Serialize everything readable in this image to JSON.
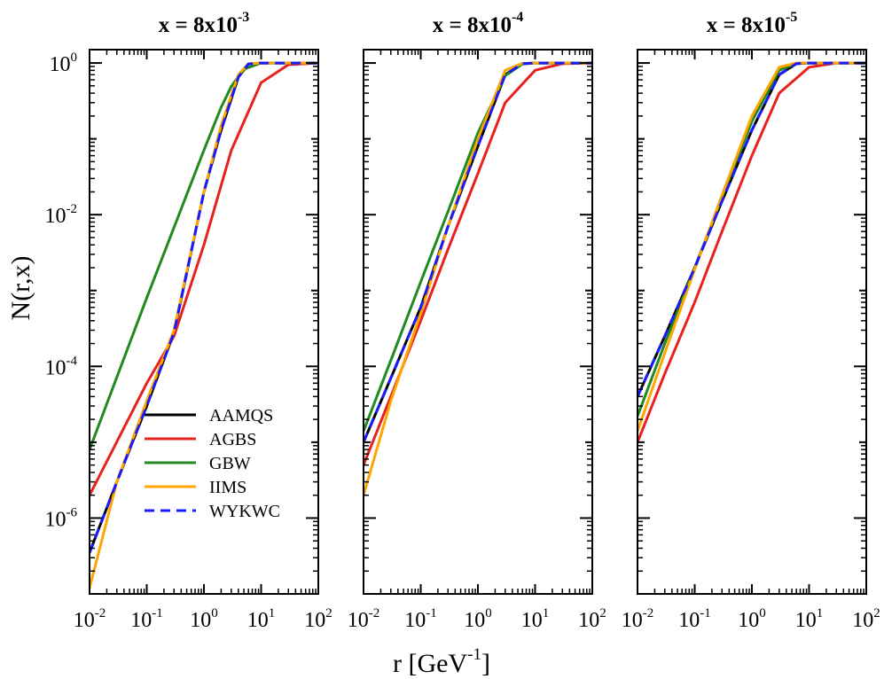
{
  "figure": {
    "ylabel": "N(r,x)",
    "xlabel_main": "r [GeV",
    "xlabel_sup": "-1",
    "xlabel_close": "]"
  },
  "chart_data": [
    {
      "type": "line",
      "title_base": "x = 8x10",
      "title_exp": "-3",
      "xscale": "log",
      "yscale": "log",
      "xlim": [
        0.01,
        100
      ],
      "ylim": [
        1e-07,
        1.5
      ],
      "xticks": [
        {
          "base": "10",
          "exp": "-2"
        },
        {
          "base": "10",
          "exp": "-1"
        },
        {
          "base": "10",
          "exp": "0"
        },
        {
          "base": "10",
          "exp": "1"
        },
        {
          "base": "10",
          "exp": "2"
        }
      ],
      "yticks": [
        {
          "value": 1,
          "base": "10",
          "exp": "0"
        },
        {
          "value": 0.01,
          "base": "10",
          "exp": "-2"
        },
        {
          "value": 0.0001,
          "base": "10",
          "exp": "-4"
        },
        {
          "value": 1e-06,
          "base": "10",
          "exp": "-6"
        }
      ],
      "series": [
        {
          "name": "AAMQS",
          "x": [
            0.01,
            0.03,
            0.1,
            0.3,
            1,
            2,
            4,
            6,
            10,
            100
          ],
          "y": [
            3.5e-07,
            3e-06,
            3e-05,
            0.00028,
            0.02,
            0.13,
            0.65,
            0.97,
            1,
            1
          ]
        },
        {
          "name": "AGBS",
          "x": [
            0.01,
            0.1,
            0.3,
            1,
            3,
            10,
            30,
            100
          ],
          "y": [
            2e-06,
            6e-05,
            0.00025,
            0.004,
            0.07,
            0.55,
            0.95,
            1
          ]
        },
        {
          "name": "GBW",
          "x": [
            0.01,
            0.1,
            0.3,
            1,
            2,
            3,
            5,
            10,
            100
          ],
          "y": [
            8e-06,
            0.0008,
            0.0068,
            0.071,
            0.26,
            0.49,
            0.83,
            1,
            1
          ]
        },
        {
          "name": "IIMS",
          "x": [
            0.01,
            0.03,
            0.1,
            0.3,
            1,
            2,
            4,
            6,
            10,
            100
          ],
          "y": [
            1.2e-07,
            3e-06,
            3.5e-05,
            0.0003,
            0.02,
            0.15,
            0.7,
            0.98,
            1,
            1
          ]
        },
        {
          "name": "WYKWC",
          "x": [
            0.01,
            0.03,
            0.1,
            0.3,
            1,
            2,
            4,
            6,
            10,
            100
          ],
          "y": [
            3.5e-07,
            3e-06,
            3e-05,
            0.00028,
            0.02,
            0.13,
            0.65,
            0.97,
            1,
            1
          ]
        }
      ]
    },
    {
      "type": "line",
      "title_base": "x = 8x10",
      "title_exp": "-4",
      "xscale": "log",
      "yscale": "log",
      "xlim": [
        0.01,
        100
      ],
      "ylim": [
        1e-07,
        1.5
      ],
      "xticks": [
        {
          "base": "10",
          "exp": "-2"
        },
        {
          "base": "10",
          "exp": "-1"
        },
        {
          "base": "10",
          "exp": "0"
        },
        {
          "base": "10",
          "exp": "1"
        },
        {
          "base": "10",
          "exp": "2"
        }
      ],
      "series": [
        {
          "name": "AAMQS",
          "x": [
            0.01,
            0.03,
            0.1,
            0.3,
            1,
            3,
            6,
            10,
            100
          ],
          "y": [
            1e-05,
            7e-05,
            0.0006,
            0.007,
            0.08,
            0.7,
            0.98,
            1,
            1
          ]
        },
        {
          "name": "AGBS",
          "x": [
            0.01,
            0.03,
            0.1,
            0.3,
            1,
            3,
            10,
            30,
            100
          ],
          "y": [
            5e-06,
            4e-05,
            0.0004,
            0.0035,
            0.035,
            0.3,
            0.8,
            0.98,
            1
          ]
        },
        {
          "name": "GBW",
          "x": [
            0.01,
            0.03,
            0.1,
            0.3,
            1,
            3,
            6,
            10,
            100
          ],
          "y": [
            1.4e-05,
            0.00012,
            0.0013,
            0.011,
            0.12,
            0.68,
            0.97,
            1,
            1
          ]
        },
        {
          "name": "IIMS",
          "x": [
            0.01,
            0.03,
            0.1,
            0.3,
            1,
            3,
            6,
            10,
            100
          ],
          "y": [
            2e-06,
            3.5e-05,
            0.0005,
            0.007,
            0.1,
            0.8,
            0.99,
            1,
            1
          ]
        },
        {
          "name": "WYKWC",
          "x": [
            0.01,
            0.03,
            0.1,
            0.3,
            1,
            3,
            6,
            10,
            100
          ],
          "y": [
            1e-05,
            7e-05,
            0.0006,
            0.007,
            0.08,
            0.7,
            0.98,
            1,
            1
          ]
        }
      ]
    },
    {
      "type": "line",
      "title_base": "x = 8x10",
      "title_exp": "-5",
      "xscale": "log",
      "yscale": "log",
      "xlim": [
        0.01,
        100
      ],
      "ylim": [
        1e-07,
        1.5
      ],
      "xticks": [
        {
          "base": "10",
          "exp": "-2"
        },
        {
          "base": "10",
          "exp": "-1"
        },
        {
          "base": "10",
          "exp": "0"
        },
        {
          "base": "10",
          "exp": "1"
        },
        {
          "base": "10",
          "exp": "2"
        }
      ],
      "series": [
        {
          "name": "AAMQS",
          "x": [
            0.01,
            0.03,
            0.1,
            0.3,
            1,
            3,
            6,
            10,
            100
          ],
          "y": [
            4e-05,
            0.00025,
            0.002,
            0.015,
            0.13,
            0.7,
            0.98,
            1,
            1
          ]
        },
        {
          "name": "AGBS",
          "x": [
            0.01,
            0.03,
            0.1,
            0.3,
            1,
            3,
            10,
            30,
            100
          ],
          "y": [
            1e-05,
            8e-05,
            0.0007,
            0.006,
            0.06,
            0.4,
            0.88,
            1,
            1
          ]
        },
        {
          "name": "GBW",
          "x": [
            0.01,
            0.03,
            0.1,
            0.3,
            1,
            3,
            6,
            10,
            100
          ],
          "y": [
            2.2e-05,
            0.0002,
            0.002,
            0.017,
            0.17,
            0.8,
            0.99,
            1,
            1
          ]
        },
        {
          "name": "IIMS",
          "x": [
            0.01,
            0.03,
            0.1,
            0.3,
            1,
            3,
            6,
            10,
            100
          ],
          "y": [
            1.4e-05,
            0.00015,
            0.0019,
            0.018,
            0.2,
            0.88,
            1,
            1,
            1
          ]
        },
        {
          "name": "WYKWC",
          "x": [
            0.01,
            0.03,
            0.1,
            0.3,
            1,
            3,
            6,
            10,
            100
          ],
          "y": [
            4e-05,
            0.00025,
            0.002,
            0.015,
            0.13,
            0.7,
            0.98,
            1,
            1
          ]
        }
      ]
    }
  ],
  "legend": {
    "location": "lower-left of first panel",
    "entries": [
      {
        "name": "AAMQS",
        "color": "#000000",
        "dash": "solid"
      },
      {
        "name": "AGBS",
        "color": "#e8211e",
        "dash": "solid"
      },
      {
        "name": "GBW",
        "color": "#1f8a1f",
        "dash": "solid"
      },
      {
        "name": "IIMS",
        "color": "#ffa500",
        "dash": "solid"
      },
      {
        "name": "WYKWC",
        "color": "#1a1aff",
        "dash": "dashed"
      }
    ]
  }
}
